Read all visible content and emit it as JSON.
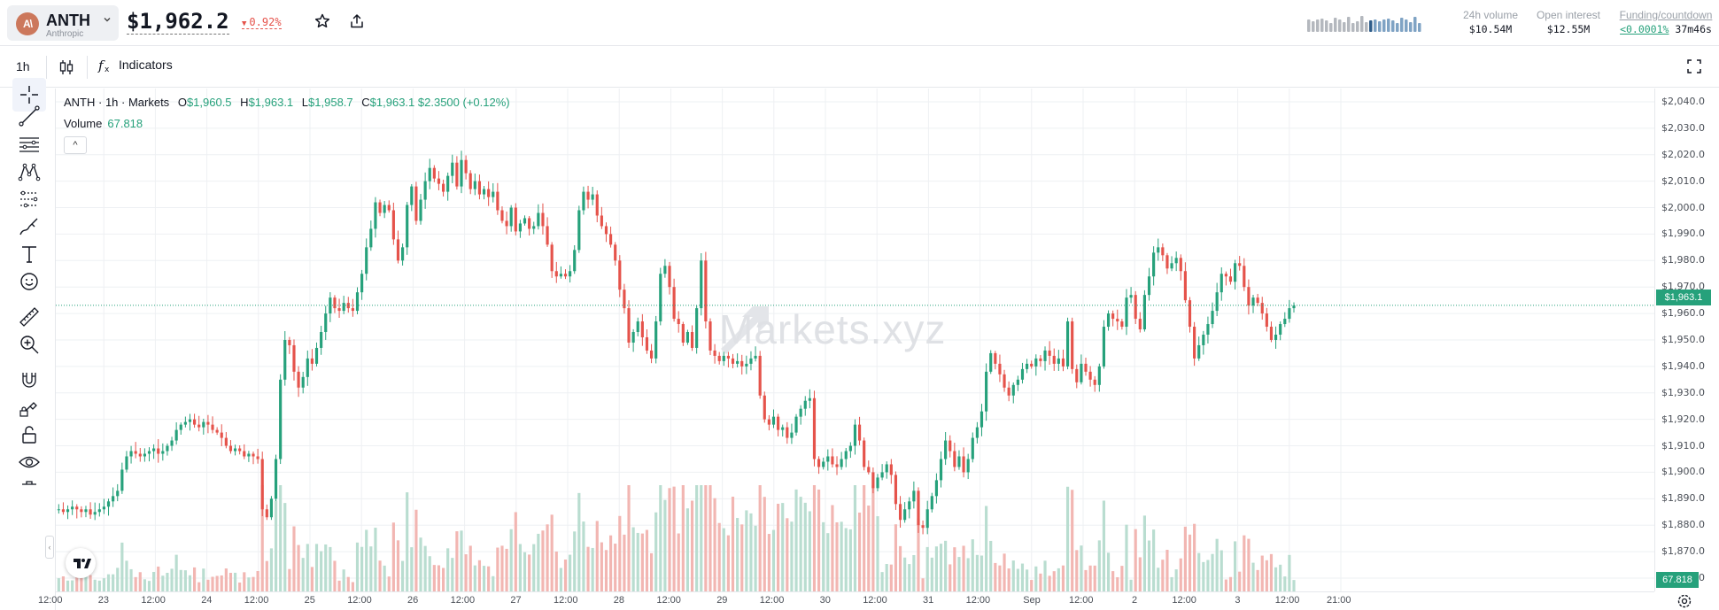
{
  "header": {
    "asset_logo_text": "A\\",
    "asset_symbol": "ANTH",
    "asset_name": "Anthropic",
    "price": "$1,962.2",
    "change": "0.92%",
    "stats": [
      {
        "label": "24h volume",
        "value": "$10.54M"
      },
      {
        "label": "Open interest",
        "value": "$12.55M"
      },
      {
        "label": "Funding/countdown",
        "value_rate": "<0.0001%",
        "value_countdown": "37m46s"
      }
    ]
  },
  "toolbar": {
    "timeframe": "1h",
    "indicators_label": "Indicators"
  },
  "legend": {
    "title": "ANTH · 1h · Markets",
    "o_label": "O",
    "o": "$1,960.5",
    "h_label": "H",
    "h": "$1,963.1",
    "l_label": "L",
    "l": "$1,958.7",
    "c_label": "C",
    "c": "$1,963.1",
    "delta": "$2.3500 (+0.12%)",
    "volume_label": "Volume",
    "volume_value": "67.818",
    "toggle": "^"
  },
  "watermark": "Markets.xyz",
  "colors": {
    "up": "#26a17b",
    "down": "#e5534b",
    "up_volume": "#b9ddd0",
    "down_volume": "#f2b6b2",
    "brand": "#cc785c"
  },
  "icons": {
    "tools": [
      "crosshair-icon",
      "trend-line-icon",
      "horizontal-lines-icon",
      "pattern-icon",
      "prediction-icon",
      "brush-icon",
      "text-icon",
      "emoji-icon",
      "ruler-icon",
      "zoom-in-icon",
      "magnet-icon",
      "lock-drawing-icon",
      "unlock-icon",
      "eye-icon"
    ],
    "header": [
      "star-icon",
      "share-icon",
      "caret-down-icon"
    ],
    "toolbar": [
      "candles-icon",
      "function-icon",
      "fullscreen-icon"
    ]
  },
  "price_axis": {
    "labels": [
      "$2,040.0",
      "$2,030.0",
      "$2,020.0",
      "$2,010.0",
      "$2,000.0",
      "$1,990.0",
      "$1,980.0",
      "$1,970.0",
      "$1,960.0",
      "$1,950.0",
      "$1,940.0",
      "$1,930.0",
      "$1,920.0",
      "$1,910.0",
      "$1,900.0",
      "$1,890.0",
      "$1,880.0",
      "$1,870.0",
      "$1,860.0"
    ],
    "last_price": "$1,963.1",
    "volume_tag": "67.818"
  },
  "time_axis": {
    "labels": [
      "12:00",
      "23",
      "12:00",
      "24",
      "12:00",
      "25",
      "12:00",
      "26",
      "12:00",
      "27",
      "12:00",
      "28",
      "12:00",
      "29",
      "12:00",
      "30",
      "12:00",
      "31",
      "12:00",
      "Sep",
      "12:00",
      "2",
      "12:00",
      "3",
      "12:00",
      "21:00"
    ]
  },
  "chart_data": {
    "type": "candlestick",
    "interval": "1h",
    "ylim": [
      1860,
      2045
    ],
    "y_axis_unit": "USD",
    "x_ticks": [
      "12:00",
      "23",
      "12:00",
      "24",
      "12:00",
      "25",
      "12:00",
      "26",
      "12:00",
      "27",
      "12:00",
      "28",
      "12:00",
      "29",
      "12:00",
      "30",
      "12:00",
      "31",
      "12:00",
      "Sep",
      "12:00",
      "2",
      "12:00",
      "3",
      "12:00",
      "21:00"
    ],
    "close_series": [
      1888,
      1887,
      1886,
      1886,
      1885,
      1886,
      1887,
      1886,
      1885,
      1886,
      1884,
      1885,
      1886,
      1887,
      1889,
      1891,
      1893,
      1901,
      1906,
      1908,
      1907,
      1906,
      1907,
      1908,
      1909,
      1907,
      1908,
      1910,
      1912,
      1916,
      1918,
      1919,
      1920,
      1918,
      1917,
      1919,
      1918,
      1916,
      1915,
      1913,
      1910,
      1908,
      1909,
      1908,
      1906,
      1907,
      1906,
      1905,
      1886,
      1883,
      1890,
      1905,
      1935,
      1950,
      1948,
      1938,
      1932,
      1936,
      1943,
      1941,
      1947,
      1953,
      1960,
      1966,
      1962,
      1961,
      1964,
      1962,
      1961,
      1968,
      1975,
      1985,
      1992,
      2002,
      1998,
      2001,
      1999,
      1988,
      1980,
      1985,
      2001,
      2008,
      1995,
      2003,
      2010,
      2015,
      2011,
      2009,
      2006,
      2012,
      2017,
      2008,
      2018,
      2013,
      2007,
      2010,
      2005,
      2007,
      2004,
      2006,
      1999,
      1995,
      1993,
      2000,
      1991,
      1994,
      1996,
      1992,
      1993,
      1998,
      1993,
      1986,
      1976,
      1974,
      1975,
      1974,
      1976,
      1984,
      1999,
      2006,
      2003,
      2005,
      1997,
      1993,
      1990,
      1986,
      1980,
      1969,
      1962,
      1949,
      1953,
      1957,
      1951,
      1946,
      1943,
      1957,
      1975,
      1978,
      1970,
      1958,
      1956,
      1949,
      1953,
      1947,
      1962,
      1980,
      1957,
      1946,
      1944,
      1942,
      1944,
      1943,
      1941,
      1942,
      1940,
      1941,
      1943,
      1944,
      1929,
      1920,
      1918,
      1921,
      1916,
      1917,
      1913,
      1915,
      1921,
      1924,
      1927,
      1928,
      1905,
      1902,
      1904,
      1906,
      1903,
      1902,
      1905,
      1908,
      1910,
      1918,
      1912,
      1902,
      1900,
      1894,
      1898,
      1900,
      1903,
      1899,
      1888,
      1882,
      1886,
      1889,
      1893,
      1880,
      1879,
      1886,
      1891,
      1897,
      1905,
      1912,
      1908,
      1902,
      1906,
      1900,
      1905,
      1913,
      1917,
      1923,
      1938,
      1945,
      1941,
      1937,
      1932,
      1929,
      1933,
      1935,
      1939,
      1941,
      1940,
      1943,
      1942,
      1946,
      1944,
      1941,
      1943,
      1940,
      1957,
      1939,
      1934,
      1941,
      1938,
      1935,
      1933,
      1940,
      1955,
      1960,
      1958,
      1957,
      1955,
      1966,
      1967,
      1958,
      1954,
      1967,
      1974,
      1983,
      1985,
      1982,
      1977,
      1979,
      1981,
      1976,
      1965,
      1955,
      1943,
      1948,
      1952,
      1956,
      1961,
      1968,
      1975,
      1974,
      1972,
      1979,
      1978,
      1970,
      1963,
      1966,
      1964,
      1960,
      1955,
      1950,
      1952,
      1956,
      1958,
      1962,
      1963
    ],
    "volume": {
      "label": "Volume",
      "last": 67.818
    },
    "last_price": 1963.1,
    "grid": true,
    "legend_placement": "top-left"
  }
}
